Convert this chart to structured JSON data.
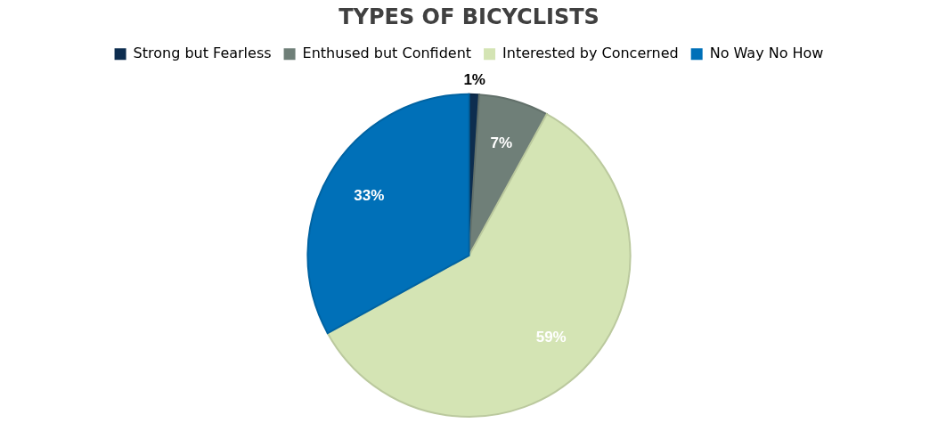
{
  "chart_data": {
    "type": "pie",
    "title": "TYPES OF BICYCLISTS",
    "categories": [
      "Strong but Fearless",
      "Enthused but Confident",
      "Interested by Concerned",
      "No Way No How"
    ],
    "values": [
      1,
      7,
      59,
      33
    ],
    "colors": [
      "#0d2d4f",
      "#6f7f78",
      "#d4e4b4",
      "#0070b8"
    ],
    "value_labels": [
      "1%",
      "7%",
      "59%",
      "33%"
    ],
    "legend": "top"
  }
}
